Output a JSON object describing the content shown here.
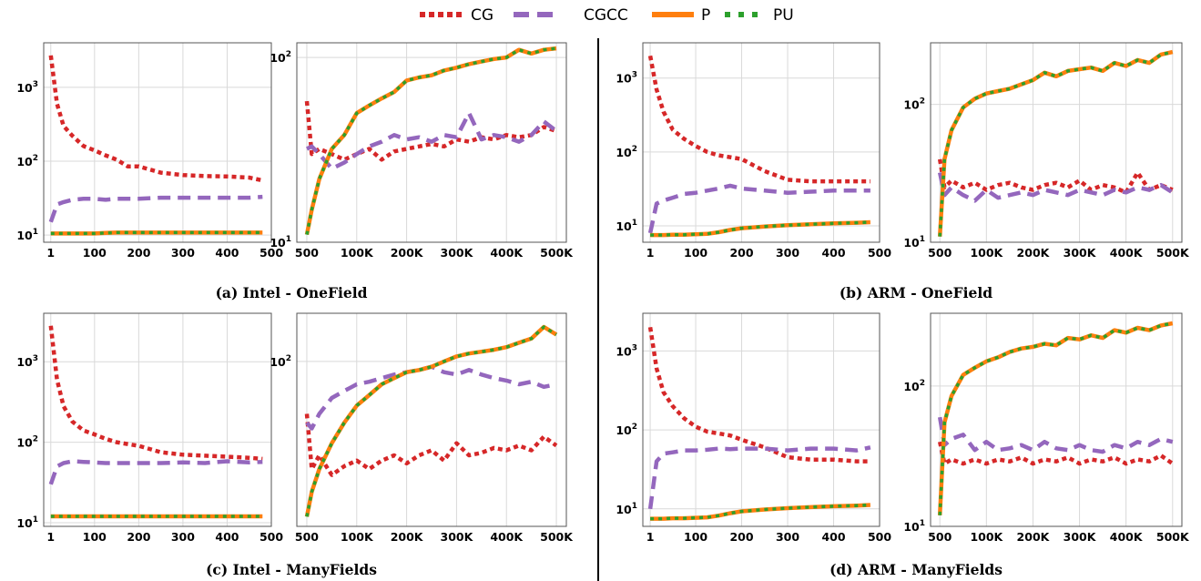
{
  "legend": {
    "items": [
      {
        "label": "CG",
        "color": "#d62728",
        "style": "dotted"
      },
      {
        "label": "CGCC",
        "color": "#9467bd",
        "style": "dashed"
      },
      {
        "label": "P",
        "color": "#ff7f0e",
        "style": "solid"
      },
      {
        "label": "PU",
        "color": "#2ca02c",
        "style": "dotted"
      }
    ]
  },
  "colors": {
    "CG": "#d62728",
    "CGCC": "#9467bd",
    "P": "#ff7f0e",
    "PU": "#2ca02c",
    "grid": "#d9d9d9"
  },
  "chart_data": [
    {
      "type": "line",
      "caption": "(a) Intel - OneField",
      "panel": "a-left",
      "yscale": "log",
      "ylim": [
        8,
        4000
      ],
      "xlim": [
        -15,
        500
      ],
      "x_ticks": [
        1,
        100,
        200,
        300,
        400,
        500
      ],
      "x_tick_labels": [
        "1",
        "100",
        "200",
        "300",
        "400",
        "500"
      ],
      "y_ticks": [
        10,
        100,
        1000
      ],
      "y_tick_labels": [
        "10^1",
        "10^2",
        "10^3"
      ],
      "x": [
        1,
        15,
        30,
        50,
        75,
        100,
        125,
        150,
        175,
        200,
        250,
        300,
        350,
        400,
        450,
        480
      ],
      "series": [
        {
          "name": "CG",
          "values": [
            2700,
            600,
            300,
            220,
            160,
            140,
            120,
            105,
            85,
            85,
            70,
            65,
            63,
            62,
            60,
            55
          ]
        },
        {
          "name": "CGCC",
          "values": [
            15,
            26,
            28,
            30,
            31,
            31,
            30,
            31,
            31,
            31,
            32,
            32,
            32,
            32,
            32,
            33
          ]
        },
        {
          "name": "P",
          "values": [
            10.5,
            10.5,
            10.5,
            10.5,
            10.5,
            10.5,
            10.7,
            10.8,
            10.8,
            10.8,
            10.8,
            10.8,
            10.8,
            10.8,
            10.8,
            10.8
          ]
        },
        {
          "name": "PU",
          "values": [
            10.5,
            10.5,
            10.5,
            10.5,
            10.5,
            10.5,
            10.7,
            10.8,
            10.8,
            10.8,
            10.8,
            10.8,
            10.8,
            10.8,
            10.8,
            10.8
          ]
        }
      ]
    },
    {
      "type": "line",
      "caption": "",
      "panel": "a-right",
      "yscale": "log",
      "ylim": [
        10,
        120
      ],
      "xlim": [
        -20,
        520
      ],
      "x_ticks": [
        0,
        100,
        200,
        300,
        400,
        500
      ],
      "x_tick_labels": [
        "500",
        "100K",
        "200K",
        "300K",
        "400K",
        "500K"
      ],
      "y_ticks": [
        10,
        100
      ],
      "y_tick_labels": [
        "10^1",
        "10^2"
      ],
      "x": [
        0,
        10,
        25,
        50,
        75,
        100,
        125,
        150,
        175,
        200,
        225,
        250,
        275,
        300,
        325,
        350,
        375,
        400,
        425,
        450,
        475,
        500
      ],
      "series": [
        {
          "name": "CG",
          "values": [
            58,
            30,
            32,
            30,
            28,
            30,
            32,
            28,
            31,
            32,
            33,
            34,
            33,
            36,
            35,
            37,
            36,
            38,
            37,
            38,
            42,
            40
          ]
        },
        {
          "name": "CGCC",
          "values": [
            32,
            33,
            30,
            25,
            27,
            30,
            33,
            35,
            38,
            36,
            37,
            35,
            38,
            37,
            50,
            36,
            38,
            37,
            35,
            38,
            45,
            40
          ]
        },
        {
          "name": "P",
          "values": [
            11,
            15,
            22,
            32,
            38,
            50,
            55,
            60,
            65,
            75,
            78,
            80,
            85,
            88,
            92,
            95,
            98,
            100,
            110,
            105,
            110,
            112
          ]
        },
        {
          "name": "PU",
          "values": [
            11,
            15,
            22,
            32,
            38,
            50,
            55,
            60,
            65,
            75,
            78,
            80,
            85,
            88,
            92,
            95,
            98,
            100,
            110,
            105,
            110,
            112
          ]
        }
      ]
    },
    {
      "type": "line",
      "caption": "(b) ARM - OneField",
      "panel": "b-left",
      "yscale": "log",
      "ylim": [
        6,
        3000
      ],
      "xlim": [
        -15,
        500
      ],
      "x_ticks": [
        1,
        100,
        200,
        300,
        400,
        500
      ],
      "x_tick_labels": [
        "1",
        "100",
        "200",
        "300",
        "400",
        "500"
      ],
      "y_ticks": [
        10,
        100,
        1000
      ],
      "y_tick_labels": [
        "10^1",
        "10^2",
        "10^3"
      ],
      "x": [
        1,
        15,
        30,
        50,
        75,
        100,
        125,
        150,
        175,
        200,
        250,
        300,
        350,
        400,
        450,
        480
      ],
      "series": [
        {
          "name": "CG",
          "values": [
            2000,
            700,
            350,
            200,
            150,
            120,
            100,
            90,
            85,
            80,
            55,
            42,
            40,
            40,
            40,
            40
          ]
        },
        {
          "name": "CGCC",
          "values": [
            8,
            20,
            22,
            24,
            27,
            28,
            30,
            32,
            35,
            32,
            30,
            28,
            29,
            30,
            30,
            30
          ]
        },
        {
          "name": "P",
          "values": [
            7.5,
            7.5,
            7.5,
            7.6,
            7.6,
            7.7,
            7.8,
            8.2,
            8.8,
            9.3,
            9.8,
            10.2,
            10.5,
            10.8,
            11,
            11.2
          ]
        },
        {
          "name": "PU",
          "values": [
            7.5,
            7.5,
            7.5,
            7.6,
            7.6,
            7.7,
            7.8,
            8.2,
            8.8,
            9.3,
            9.8,
            10.2,
            10.5,
            10.8,
            11,
            11.2
          ]
        }
      ]
    },
    {
      "type": "line",
      "caption": "",
      "panel": "b-right",
      "yscale": "log",
      "ylim": [
        10,
        280
      ],
      "xlim": [
        -20,
        520
      ],
      "x_ticks": [
        0,
        100,
        200,
        300,
        400,
        500
      ],
      "x_tick_labels": [
        "500",
        "100K",
        "200K",
        "300K",
        "400K",
        "500K"
      ],
      "y_ticks": [
        10,
        100
      ],
      "y_tick_labels": [
        "10^1",
        "10^2"
      ],
      "x": [
        0,
        10,
        25,
        50,
        75,
        100,
        125,
        150,
        175,
        200,
        225,
        250,
        275,
        300,
        325,
        350,
        375,
        400,
        425,
        450,
        475,
        500
      ],
      "series": [
        {
          "name": "CG",
          "values": [
            40,
            25,
            28,
            25,
            27,
            24,
            26,
            27,
            25,
            24,
            26,
            27,
            25,
            28,
            24,
            26,
            25,
            23,
            32,
            24,
            26,
            24
          ]
        },
        {
          "name": "CGCC",
          "values": [
            32,
            22,
            25,
            22,
            20,
            24,
            21,
            22,
            23,
            22,
            24,
            23,
            22,
            24,
            23,
            22,
            24,
            23,
            25,
            24,
            26,
            23
          ]
        },
        {
          "name": "P",
          "values": [
            11,
            40,
            65,
            95,
            110,
            120,
            125,
            130,
            140,
            150,
            170,
            160,
            175,
            180,
            185,
            175,
            200,
            190,
            210,
            200,
            230,
            240
          ]
        },
        {
          "name": "PU",
          "values": [
            11,
            40,
            65,
            95,
            110,
            120,
            125,
            130,
            140,
            150,
            170,
            160,
            175,
            180,
            185,
            175,
            200,
            190,
            210,
            200,
            230,
            240
          ]
        }
      ]
    },
    {
      "type": "line",
      "caption": "(c) Intel - ManyFields",
      "panel": "c-left",
      "yscale": "log",
      "ylim": [
        9,
        4000
      ],
      "xlim": [
        -15,
        500
      ],
      "x_ticks": [
        1,
        100,
        200,
        300,
        400,
        500
      ],
      "x_tick_labels": [
        "1",
        "100",
        "200",
        "300",
        "400",
        "500"
      ],
      "y_ticks": [
        10,
        100,
        1000
      ],
      "y_tick_labels": [
        "10^1",
        "10^2",
        "10^3"
      ],
      "x": [
        1,
        15,
        30,
        50,
        75,
        100,
        125,
        150,
        175,
        200,
        250,
        300,
        350,
        400,
        450,
        480
      ],
      "series": [
        {
          "name": "CG",
          "values": [
            2800,
            600,
            280,
            180,
            140,
            125,
            110,
            100,
            95,
            90,
            75,
            70,
            68,
            66,
            64,
            62
          ]
        },
        {
          "name": "CGCC",
          "values": [
            30,
            50,
            55,
            58,
            57,
            56,
            55,
            55,
            55,
            55,
            55,
            56,
            55,
            58,
            56,
            57
          ]
        },
        {
          "name": "P",
          "values": [
            12,
            12,
            12,
            12,
            12,
            12,
            12,
            12,
            12,
            12,
            12,
            12,
            12,
            12,
            12,
            12
          ]
        },
        {
          "name": "PU",
          "values": [
            12,
            12,
            12,
            12,
            12,
            12,
            12,
            12,
            12,
            12,
            12,
            12,
            12,
            12,
            12,
            12
          ]
        }
      ]
    },
    {
      "type": "line",
      "caption": "",
      "panel": "c-right",
      "yscale": "log",
      "ylim": [
        20,
        160
      ],
      "xlim": [
        -20,
        520
      ],
      "x_ticks": [
        0,
        100,
        200,
        300,
        400,
        500
      ],
      "x_tick_labels": [
        "500",
        "100K",
        "200K",
        "300K",
        "400K",
        "500K"
      ],
      "y_ticks": [
        100
      ],
      "y_tick_labels": [
        "10^2"
      ],
      "x": [
        0,
        10,
        25,
        50,
        75,
        100,
        125,
        150,
        175,
        200,
        225,
        250,
        275,
        300,
        325,
        350,
        375,
        400,
        425,
        450,
        475,
        500
      ],
      "series": [
        {
          "name": "CG",
          "values": [
            60,
            35,
            40,
            33,
            36,
            38,
            35,
            38,
            40,
            37,
            40,
            42,
            38,
            45,
            40,
            41,
            43,
            42,
            44,
            42,
            48,
            44
          ]
        },
        {
          "name": "CGCC",
          "values": [
            55,
            52,
            60,
            70,
            75,
            80,
            82,
            85,
            88,
            90,
            92,
            95,
            90,
            88,
            92,
            88,
            85,
            83,
            80,
            82,
            78,
            80
          ]
        },
        {
          "name": "P",
          "values": [
            22,
            28,
            35,
            45,
            55,
            65,
            72,
            80,
            85,
            90,
            92,
            95,
            100,
            105,
            108,
            110,
            112,
            115,
            120,
            125,
            140,
            130
          ]
        },
        {
          "name": "PU",
          "values": [
            22,
            28,
            35,
            45,
            55,
            65,
            72,
            80,
            85,
            90,
            92,
            95,
            100,
            105,
            108,
            110,
            112,
            115,
            120,
            125,
            140,
            130
          ]
        }
      ]
    },
    {
      "type": "line",
      "caption": "(d) ARM - ManyFields",
      "panel": "d-left",
      "yscale": "log",
      "ylim": [
        6,
        3000
      ],
      "xlim": [
        -15,
        500
      ],
      "x_ticks": [
        1,
        100,
        200,
        300,
        400,
        500
      ],
      "x_tick_labels": [
        "1",
        "100",
        "200",
        "300",
        "400",
        "500"
      ],
      "y_ticks": [
        10,
        100,
        1000
      ],
      "y_tick_labels": [
        "10^1",
        "10^2",
        "10^3"
      ],
      "x": [
        1,
        15,
        30,
        50,
        75,
        100,
        125,
        150,
        175,
        200,
        250,
        300,
        350,
        400,
        450,
        480
      ],
      "series": [
        {
          "name": "CG",
          "values": [
            2000,
            600,
            300,
            200,
            140,
            110,
            95,
            90,
            85,
            75,
            60,
            45,
            42,
            42,
            40,
            40
          ]
        },
        {
          "name": "CGCC",
          "values": [
            10,
            40,
            50,
            52,
            55,
            55,
            56,
            58,
            57,
            58,
            58,
            55,
            58,
            58,
            55,
            60
          ]
        },
        {
          "name": "P",
          "values": [
            7.5,
            7.5,
            7.5,
            7.6,
            7.6,
            7.7,
            7.8,
            8.2,
            8.8,
            9.3,
            9.8,
            10.2,
            10.5,
            10.8,
            11,
            11.2
          ]
        },
        {
          "name": "PU",
          "values": [
            7.5,
            7.5,
            7.5,
            7.6,
            7.6,
            7.7,
            7.8,
            8.2,
            8.8,
            9.3,
            9.8,
            10.2,
            10.5,
            10.8,
            11,
            11.2
          ]
        }
      ]
    },
    {
      "type": "line",
      "caption": "",
      "panel": "d-right",
      "yscale": "log",
      "ylim": [
        10,
        330
      ],
      "xlim": [
        -20,
        520
      ],
      "x_ticks": [
        0,
        100,
        200,
        300,
        400,
        500
      ],
      "x_tick_labels": [
        "500",
        "100K",
        "200K",
        "300K",
        "400K",
        "500K"
      ],
      "y_ticks": [
        10,
        100
      ],
      "y_tick_labels": [
        "10^1",
        "10^2"
      ],
      "x": [
        0,
        10,
        25,
        50,
        75,
        100,
        125,
        150,
        175,
        200,
        225,
        250,
        275,
        300,
        325,
        350,
        375,
        400,
        425,
        450,
        475,
        500
      ],
      "series": [
        {
          "name": "CG",
          "values": [
            40,
            28,
            30,
            28,
            30,
            28,
            30,
            29,
            31,
            28,
            30,
            29,
            31,
            28,
            30,
            29,
            31,
            28,
            30,
            29,
            32,
            28
          ]
        },
        {
          "name": "CGCC",
          "values": [
            60,
            38,
            42,
            45,
            35,
            40,
            35,
            36,
            38,
            35,
            40,
            36,
            35,
            38,
            35,
            34,
            38,
            36,
            40,
            38,
            42,
            40
          ]
        },
        {
          "name": "P",
          "values": [
            12,
            55,
            85,
            120,
            135,
            150,
            160,
            175,
            185,
            190,
            200,
            195,
            220,
            215,
            230,
            220,
            250,
            240,
            260,
            250,
            270,
            280
          ]
        },
        {
          "name": "PU",
          "values": [
            12,
            55,
            85,
            120,
            135,
            150,
            160,
            175,
            185,
            190,
            200,
            195,
            220,
            215,
            230,
            220,
            250,
            240,
            260,
            250,
            270,
            280
          ]
        }
      ]
    }
  ]
}
